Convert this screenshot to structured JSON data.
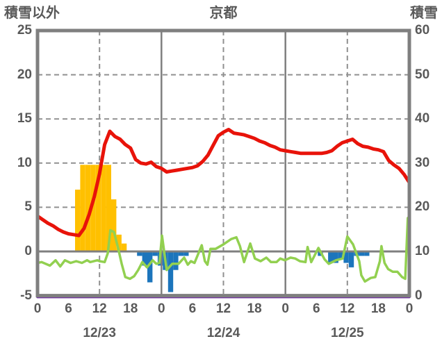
{
  "header": {
    "left_axis_title": "積雪以外",
    "station_title": "京都",
    "right_axis_title": "積雪"
  },
  "chart_data": {
    "type": "composite",
    "title": "京都",
    "left_axis": {
      "label": "積雪以外",
      "min": -5,
      "max": 25,
      "ticks": [
        25,
        20,
        15,
        10,
        5,
        0,
        -5
      ]
    },
    "right_axis": {
      "label": "積雪",
      "min": 0,
      "max": 60,
      "ticks": [
        60,
        50,
        40,
        30,
        20,
        10,
        0
      ]
    },
    "x_axis": {
      "hours_total": 72,
      "tick_hours": [
        0,
        6,
        12,
        18,
        24,
        30,
        36,
        42,
        48,
        54,
        60,
        66,
        72
      ],
      "tick_labels": [
        "0",
        "6",
        "12",
        "18",
        "0",
        "6",
        "12",
        "18",
        "0",
        "6",
        "12",
        "18",
        "0"
      ],
      "day_labels": [
        {
          "label": "12/23",
          "center_hour": 12
        },
        {
          "label": "12/24",
          "center_hour": 36
        },
        {
          "label": "12/25",
          "center_hour": 60
        }
      ]
    },
    "grid": {
      "h_dashed_left_values": [
        20,
        15,
        10,
        5
      ],
      "v_dashed_hours": [
        12,
        36,
        60
      ],
      "v_solid_hours": [
        24,
        48
      ],
      "zero_line_left_value": 0
    },
    "colors": {
      "red_line": "#e8130a",
      "green_line": "#92d050",
      "orange_bars": "#ffc000",
      "blue_bars": "#1c75bc",
      "purple_line": "#7030a0",
      "grid": "#909090",
      "axis": "#7f7f7f",
      "text": "#595959",
      "background": "#ffffff"
    },
    "series": [
      {
        "name": "red_line",
        "type": "line",
        "axis": "left",
        "color": "#e8130a",
        "points": [
          [
            0,
            4.0
          ],
          [
            1,
            3.6
          ],
          [
            2,
            3.2
          ],
          [
            3,
            2.9
          ],
          [
            4,
            2.5
          ],
          [
            5,
            2.2
          ],
          [
            6,
            2.0
          ],
          [
            7,
            1.9
          ],
          [
            8,
            1.8
          ],
          [
            9,
            2.6
          ],
          [
            10,
            4.2
          ],
          [
            11,
            6.2
          ],
          [
            12,
            8.8
          ],
          [
            13,
            12.1
          ],
          [
            14,
            13.6
          ],
          [
            15,
            13.0
          ],
          [
            16,
            12.7
          ],
          [
            17,
            12.1
          ],
          [
            18,
            11.7
          ],
          [
            19,
            10.4
          ],
          [
            20,
            10.0
          ],
          [
            21,
            9.9
          ],
          [
            22,
            10.1
          ],
          [
            23,
            9.6
          ],
          [
            24,
            9.4
          ],
          [
            25,
            9.0
          ],
          [
            26,
            9.1
          ],
          [
            27,
            9.2
          ],
          [
            28,
            9.3
          ],
          [
            29,
            9.4
          ],
          [
            30,
            9.5
          ],
          [
            31,
            9.7
          ],
          [
            32,
            10.2
          ],
          [
            33,
            10.9
          ],
          [
            34,
            12.0
          ],
          [
            35,
            13.1
          ],
          [
            36,
            13.5
          ],
          [
            37,
            13.8
          ],
          [
            38,
            13.4
          ],
          [
            39,
            13.3
          ],
          [
            40,
            13.2
          ],
          [
            41,
            13.0
          ],
          [
            42,
            12.8
          ],
          [
            43,
            12.5
          ],
          [
            44,
            12.3
          ],
          [
            45,
            12.0
          ],
          [
            46,
            11.8
          ],
          [
            47,
            11.5
          ],
          [
            48,
            11.4
          ],
          [
            49,
            11.3
          ],
          [
            50,
            11.2
          ],
          [
            51,
            11.1
          ],
          [
            52,
            11.1
          ],
          [
            53,
            11.1
          ],
          [
            54,
            11.1
          ],
          [
            55,
            11.1
          ],
          [
            56,
            11.2
          ],
          [
            57,
            11.4
          ],
          [
            58,
            11.9
          ],
          [
            59,
            12.3
          ],
          [
            60,
            12.5
          ],
          [
            61,
            12.7
          ],
          [
            62,
            12.2
          ],
          [
            63,
            11.9
          ],
          [
            64,
            11.8
          ],
          [
            65,
            11.6
          ],
          [
            66,
            11.5
          ],
          [
            67,
            11.3
          ],
          [
            68,
            10.3
          ],
          [
            69,
            9.8
          ],
          [
            70,
            9.4
          ],
          [
            71,
            8.7
          ],
          [
            72,
            7.8
          ]
        ]
      },
      {
        "name": "green_line",
        "type": "line",
        "axis": "left",
        "color": "#92d050",
        "points": [
          [
            0,
            -1.3
          ],
          [
            0.8,
            -1.2
          ],
          [
            2.4,
            -1.6
          ],
          [
            3.5,
            -1.0
          ],
          [
            4.4,
            -1.7
          ],
          [
            5.3,
            -1.0
          ],
          [
            6.4,
            -1.3
          ],
          [
            7.5,
            -1.1
          ],
          [
            8.6,
            -1.3
          ],
          [
            9.6,
            -1.0
          ],
          [
            10.2,
            -1.2
          ],
          [
            11.6,
            -1.0
          ],
          [
            12,
            -1.1
          ],
          [
            13,
            -1.2
          ],
          [
            13.6,
            -0.2
          ],
          [
            14.1,
            2.4
          ],
          [
            14.8,
            2.2
          ],
          [
            15.6,
            0.4
          ],
          [
            16.3,
            -1.4
          ],
          [
            17,
            -2.9
          ],
          [
            17.9,
            -3.1
          ],
          [
            18.7,
            -2.8
          ],
          [
            19.5,
            -2.1
          ],
          [
            20.3,
            -1.2
          ],
          [
            21.2,
            -1.8
          ],
          [
            22.3,
            -1.0
          ],
          [
            23,
            -1.4
          ],
          [
            23.6,
            -1.3
          ],
          [
            24.1,
            1.8
          ],
          [
            25,
            -2.1
          ],
          [
            26.1,
            -1.4
          ],
          [
            27.3,
            -1.4
          ],
          [
            28.4,
            -0.7
          ],
          [
            29.1,
            -1.5
          ],
          [
            29.7,
            -1.1
          ],
          [
            30.4,
            -1.3
          ],
          [
            31.8,
            0.7
          ],
          [
            32.4,
            -1.1
          ],
          [
            32.9,
            -1.5
          ],
          [
            33.5,
            0.3
          ],
          [
            34.5,
            0.3
          ],
          [
            36,
            0.8
          ],
          [
            37.5,
            1.4
          ],
          [
            38.5,
            1.6
          ],
          [
            39.2,
            0.6
          ],
          [
            40,
            -1.2
          ],
          [
            41.2,
            0.9
          ],
          [
            42.1,
            -0.8
          ],
          [
            43.2,
            -1.1
          ],
          [
            44.3,
            -0.7
          ],
          [
            45.2,
            -1.2
          ],
          [
            46.3,
            -1.2
          ],
          [
            47,
            -0.8
          ],
          [
            47.9,
            -1.0
          ],
          [
            49,
            -0.7
          ],
          [
            49.9,
            -0.8
          ],
          [
            50.8,
            -1.1
          ],
          [
            51.9,
            -1.2
          ],
          [
            52.3,
            0.5
          ],
          [
            53,
            -1.2
          ],
          [
            54.4,
            0.4
          ],
          [
            55.6,
            -0.9
          ],
          [
            56.4,
            -1.4
          ],
          [
            57.8,
            -1.0
          ],
          [
            59.1,
            -0.8
          ],
          [
            60,
            1.7
          ],
          [
            61.1,
            0.8
          ],
          [
            62.3,
            -1.1
          ],
          [
            62.7,
            -2.7
          ],
          [
            63.4,
            -3.4
          ],
          [
            64.5,
            -3.0
          ],
          [
            65.4,
            -2.9
          ],
          [
            66.3,
            -1.1
          ],
          [
            66.6,
            0.6
          ],
          [
            67.2,
            -1.3
          ],
          [
            67.9,
            -2.0
          ],
          [
            68.8,
            -2.3
          ],
          [
            69.7,
            -2.3
          ],
          [
            70.6,
            -2.9
          ],
          [
            71.2,
            -3.1
          ],
          [
            71.7,
            3.8
          ],
          [
            72,
            3.9
          ]
        ]
      },
      {
        "name": "orange_bars",
        "type": "bar",
        "axis": "left",
        "color": "#ffc000",
        "bars": [
          [
            7,
            7.0
          ],
          [
            8,
            9.8
          ],
          [
            9,
            9.8
          ],
          [
            10,
            9.8
          ],
          [
            11,
            9.8
          ],
          [
            12,
            9.8
          ],
          [
            13,
            9.8
          ],
          [
            14,
            5.9
          ],
          [
            15,
            1.9
          ],
          [
            16,
            0.9
          ]
        ]
      },
      {
        "name": "blue_bars",
        "type": "bar",
        "axis": "left",
        "color": "#1c75bc",
        "bars": [
          [
            19,
            -0.5
          ],
          [
            20,
            -1.6
          ],
          [
            21,
            -3.5
          ],
          [
            22,
            -0.5
          ],
          [
            23,
            -1.6
          ],
          [
            24,
            -2.1
          ],
          [
            25,
            -4.6
          ],
          [
            26,
            -2.1
          ],
          [
            27,
            -0.5
          ],
          [
            28,
            -0.5
          ],
          [
            54,
            -0.5
          ],
          [
            56,
            -1.3
          ],
          [
            57,
            -1.3
          ],
          [
            58,
            -0.9
          ],
          [
            59,
            -1.3
          ],
          [
            60,
            -1.8
          ],
          [
            61,
            -0.5
          ],
          [
            62,
            -0.5
          ],
          [
            63,
            -0.5
          ]
        ]
      },
      {
        "name": "purple_line",
        "type": "line",
        "axis": "right",
        "color": "#7030a0",
        "points": [
          [
            0,
            0
          ],
          [
            72,
            0
          ]
        ]
      }
    ]
  }
}
